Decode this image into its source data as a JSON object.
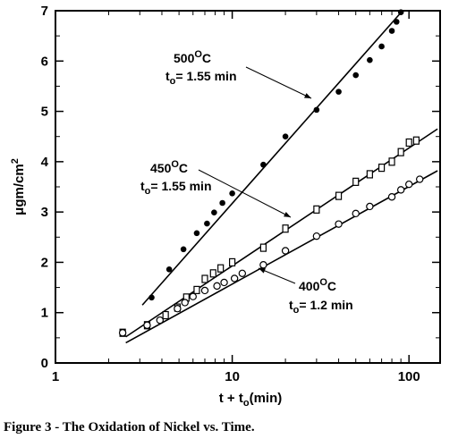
{
  "caption": "Figure 3 - The Oxidation of Nickel vs. Time.",
  "chart_data": {
    "type": "scatter",
    "x_scale": "log",
    "xlim": [
      1,
      150
    ],
    "ylim": [
      0,
      7
    ],
    "x_ticks": [
      1,
      10,
      100
    ],
    "x_tick_labels": [
      "1",
      "10",
      "100"
    ],
    "y_ticks": [
      0,
      1,
      2,
      3,
      4,
      5,
      6,
      7
    ],
    "y_tick_labels": [
      "0",
      "1",
      "2",
      "3",
      "4",
      "5",
      "6",
      "7"
    ],
    "xlabel": {
      "main": "t + t",
      "sub": "o",
      "tail": "(min)"
    },
    "ylabel": {
      "main": "μgm/cm",
      "sup": "2"
    },
    "grid": false,
    "series": [
      {
        "key": "500C",
        "marker": "filled-circle",
        "label_line1": {
          "main": "500",
          "sup": "O",
          "tail": "C"
        },
        "label_line2": {
          "main": "t",
          "sub": "o",
          "tail": "= 1.55 min"
        },
        "points": [
          [
            3.5,
            1.3
          ],
          [
            4.4,
            1.86
          ],
          [
            5.3,
            2.26
          ],
          [
            6.3,
            2.58
          ],
          [
            7.2,
            2.77
          ],
          [
            7.9,
            2.99
          ],
          [
            8.8,
            3.18
          ],
          [
            10.0,
            3.37
          ],
          [
            15.0,
            3.94
          ],
          [
            20.0,
            4.5
          ],
          [
            30.0,
            5.03
          ],
          [
            40.0,
            5.39
          ],
          [
            50.0,
            5.72
          ],
          [
            60.0,
            6.02
          ],
          [
            70.0,
            6.29
          ],
          [
            80.0,
            6.6
          ],
          [
            85.0,
            6.78
          ],
          [
            90.0,
            6.97
          ]
        ],
        "fit": [
          [
            3.1,
            1.15
          ],
          [
            92.0,
            7.0
          ]
        ]
      },
      {
        "key": "450C",
        "marker": "open-square",
        "label_line1": {
          "main": "450",
          "sup": "O",
          "tail": "C"
        },
        "label_line2": {
          "main": "t",
          "sub": "o",
          "tail": "= 1.55 min"
        },
        "points": [
          [
            2.4,
            0.6
          ],
          [
            3.3,
            0.75
          ],
          [
            4.2,
            0.95
          ],
          [
            4.9,
            1.1
          ],
          [
            5.5,
            1.3
          ],
          [
            6.3,
            1.45
          ],
          [
            7.0,
            1.67
          ],
          [
            7.8,
            1.78
          ],
          [
            8.6,
            1.88
          ],
          [
            10.0,
            2.0
          ],
          [
            15.0,
            2.29
          ],
          [
            20.0,
            2.67
          ],
          [
            30.0,
            3.05
          ],
          [
            40.0,
            3.32
          ],
          [
            50.0,
            3.6
          ],
          [
            60.0,
            3.75
          ],
          [
            70.0,
            3.88
          ],
          [
            80.0,
            4.0
          ],
          [
            90.0,
            4.19
          ],
          [
            100.0,
            4.38
          ],
          [
            110.0,
            4.42
          ]
        ],
        "fit": [
          [
            2.5,
            0.52
          ],
          [
            145.0,
            4.65
          ]
        ]
      },
      {
        "key": "400C",
        "marker": "open-circle",
        "label_line1": {
          "main": "400",
          "sup": "O",
          "tail": "C"
        },
        "label_line2": {
          "main": "t",
          "sub": "o",
          "tail": "= 1.2 min"
        },
        "points": [
          [
            2.4,
            0.6
          ],
          [
            3.3,
            0.75
          ],
          [
            3.9,
            0.85
          ],
          [
            4.9,
            1.08
          ],
          [
            5.4,
            1.2
          ],
          [
            6.0,
            1.32
          ],
          [
            7.0,
            1.44
          ],
          [
            8.2,
            1.53
          ],
          [
            9.0,
            1.6
          ],
          [
            10.3,
            1.68
          ],
          [
            11.4,
            1.78
          ],
          [
            15.0,
            1.95
          ],
          [
            20.0,
            2.23
          ],
          [
            30.0,
            2.52
          ],
          [
            40.0,
            2.76
          ],
          [
            50.0,
            2.97
          ],
          [
            60.0,
            3.11
          ],
          [
            80.0,
            3.3
          ],
          [
            90.0,
            3.44
          ],
          [
            100.0,
            3.55
          ],
          [
            115.0,
            3.65
          ]
        ],
        "fit": [
          [
            2.5,
            0.4
          ],
          [
            145.0,
            3.82
          ]
        ]
      }
    ]
  }
}
